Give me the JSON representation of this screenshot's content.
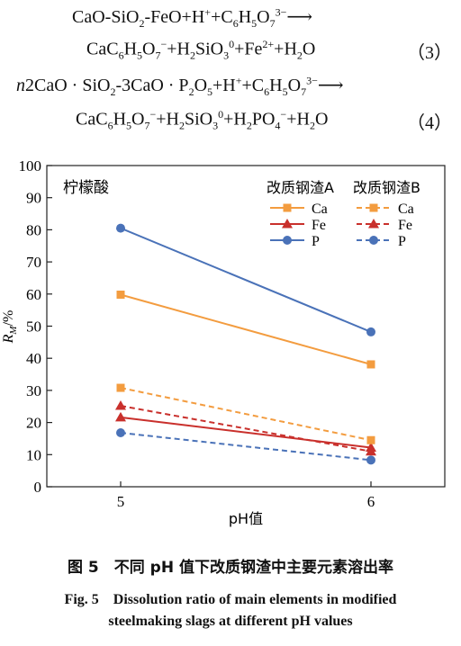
{
  "equations": [
    {
      "text": "CaO-SiO<sub>2</sub>-FeO+H<sup>+</sup>+C<sub>6</sub>H<sub>5</sub>O<sub>7</sub><sup>3−</sup>⟶",
      "number": ""
    },
    {
      "text": "CaC<sub>6</sub>H<sub>5</sub>O<sub>7</sub><sup>−</sup>+H<sub>2</sub>SiO<sub>3</sub><sup>0</sup>+Fe<sup>2+</sup>+H<sub>2</sub>O",
      "number": "（3）"
    },
    {
      "text": "<i>n</i>2CaO · SiO<sub>2</sub>-3CaO · P<sub>2</sub>O<sub>5</sub>+H<sup>+</sup>+C<sub>6</sub>H<sub>5</sub>O<sub>7</sub><sup>3−</sup>⟶",
      "number": ""
    },
    {
      "text": "CaC<sub>6</sub>H<sub>5</sub>O<sub>7</sub><sup>−</sup>+H<sub>2</sub>SiO<sub>3</sub><sup>0</sup>+H<sub>2</sub>PO<sub>4</sub><sup>−</sup>+H<sub>2</sub>O",
      "number": "（4）"
    }
  ],
  "chart_data": {
    "type": "line",
    "x": [
      5,
      6
    ],
    "xlabel": "pH值",
    "ylabel": "R_M/%",
    "ylim": [
      0,
      100
    ],
    "yticks": [
      0,
      10,
      20,
      30,
      40,
      50,
      60,
      70,
      80,
      90,
      100
    ],
    "xticks": [
      "5",
      "6"
    ],
    "annotation": "柠檬酸",
    "legend_headers": [
      "改质钢渣A",
      "改质钢渣B"
    ],
    "series": [
      {
        "name": "Ca",
        "group": "改质钢渣A",
        "values": [
          59.8,
          38.1
        ],
        "color": "#f39c3f",
        "marker": "square",
        "dash": false
      },
      {
        "name": "Fe",
        "group": "改质钢渣A",
        "values": [
          21.6,
          12.2
        ],
        "color": "#c9302c",
        "marker": "triangle",
        "dash": false
      },
      {
        "name": "P",
        "group": "改质钢渣A",
        "values": [
          80.5,
          48.2
        ],
        "color": "#4a72b8",
        "marker": "circle",
        "dash": false
      },
      {
        "name": "Ca",
        "group": "改质钢渣B",
        "values": [
          30.8,
          14.5
        ],
        "color": "#f39c3f",
        "marker": "square",
        "dash": true
      },
      {
        "name": "Fe",
        "group": "改质钢渣B",
        "values": [
          25.2,
          11.0
        ],
        "color": "#c9302c",
        "marker": "triangle",
        "dash": true
      },
      {
        "name": "P",
        "group": "改质钢渣B",
        "values": [
          16.8,
          8.3
        ],
        "color": "#4a72b8",
        "marker": "circle",
        "dash": true
      }
    ]
  },
  "caption": {
    "zh": "图 5　不同 pH 值下改质钢渣中主要元素溶出率",
    "en_line1": "Fig. 5　Dissolution ratio of main elements in modified",
    "en_line2": "steelmaking slags at different pH values"
  }
}
